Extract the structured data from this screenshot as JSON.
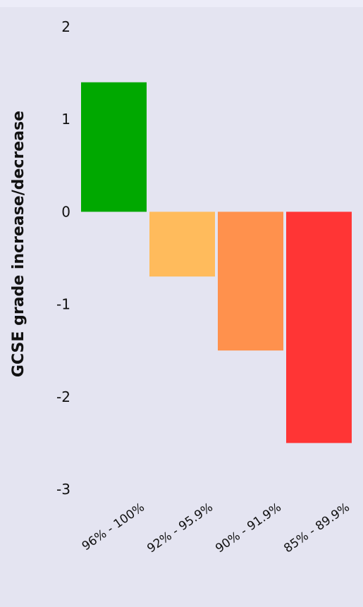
{
  "chart_data": {
    "type": "bar",
    "title": "",
    "xlabel": "",
    "ylabel": "GCSE grade increase/decrease",
    "categories": [
      "96% - 100%",
      "92% - 95.9%",
      "90% - 91.9%",
      "85% - 89.9%"
    ],
    "values": [
      1.4,
      -0.7,
      -1.5,
      -2.5
    ],
    "bar_colors": [
      "#00a800",
      "#ffbb5c",
      "#ff914d",
      "#ff3535"
    ],
    "ylim": [
      -3,
      2
    ],
    "yticks": [
      2,
      1,
      0,
      -1,
      -2,
      -3
    ],
    "grid": false,
    "legend": "none"
  }
}
